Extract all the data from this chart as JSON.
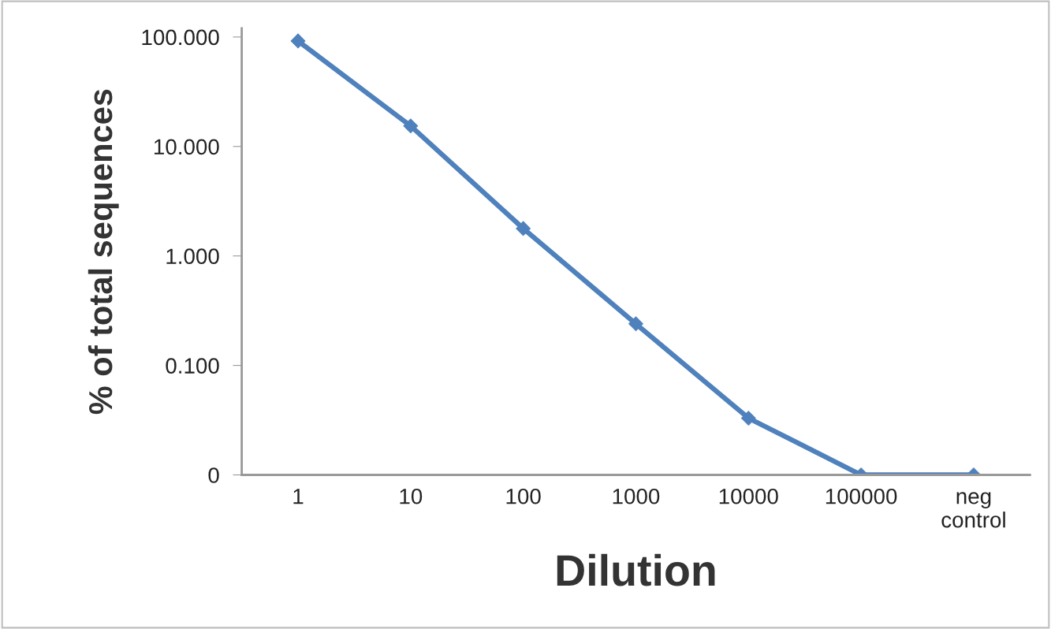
{
  "chart_data": {
    "type": "line",
    "xlabel": "Dilution",
    "ylabel": "% of total sequences",
    "categories": [
      "1",
      "10",
      "100",
      "1000",
      "10000",
      "100000",
      "neg\ncontrol"
    ],
    "series": [
      {
        "color": "#4f81bd",
        "values": [
          92,
          15.4,
          1.78,
          0.24,
          0.033,
          0.01,
          0.01
        ]
      }
    ],
    "log": true,
    "ylim": [
      0.01,
      120
    ],
    "yticks": [
      {
        "value": 0.01,
        "label": "0"
      },
      {
        "value": 0.1,
        "label": "0.100"
      },
      {
        "value": 1,
        "label": "1.000"
      },
      {
        "value": 10,
        "label": "10.000"
      },
      {
        "value": 100,
        "label": "100.000"
      }
    ],
    "marker": "diamond",
    "line_style": "solid",
    "grid": false,
    "legend": false
  }
}
